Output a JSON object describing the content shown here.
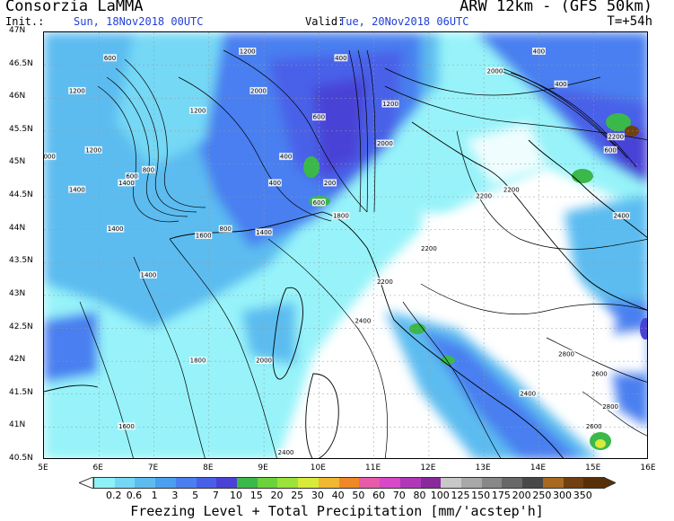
{
  "header": {
    "title_left": "Consorzia LaMMA",
    "title_right": "ARW 12km - (GFS 50km)",
    "init_label": "Init.:",
    "init_value": "Sun, 18Nov2018 00UTC",
    "valid_label": "Valid:",
    "valid_value": "Tue, 20Nov2018 06UTC",
    "step": "T=+54h"
  },
  "axes": {
    "lat_ticks": [
      "47N",
      "46.5N",
      "46N",
      "45.5N",
      "45N",
      "44.5N",
      "44N",
      "43.5N",
      "43N",
      "42.5N",
      "42N",
      "41.5N",
      "41N",
      "40.5N"
    ],
    "lon_ticks": [
      "5E",
      "6E",
      "7E",
      "8E",
      "9E",
      "10E",
      "11E",
      "12E",
      "13E",
      "14E",
      "15E",
      "16E"
    ]
  },
  "contour_labels": [
    {
      "text": "1200",
      "lon": 5.6,
      "lat": 46.1
    },
    {
      "text": "1200",
      "lon": 8.7,
      "lat": 46.7
    },
    {
      "text": "1200",
      "lon": 7.8,
      "lat": 45.8
    },
    {
      "text": "1200",
      "lon": 11.3,
      "lat": 45.9
    },
    {
      "text": "1200",
      "lon": 5.9,
      "lat": 45.2
    },
    {
      "text": "1400",
      "lon": 5.6,
      "lat": 44.6
    },
    {
      "text": "1400",
      "lon": 6.5,
      "lat": 44.7
    },
    {
      "text": "1400",
      "lon": 6.3,
      "lat": 44.0
    },
    {
      "text": "1400",
      "lon": 6.9,
      "lat": 43.3
    },
    {
      "text": "1400",
      "lon": 9.0,
      "lat": 43.95
    },
    {
      "text": "1600",
      "lon": 7.9,
      "lat": 43.9
    },
    {
      "text": "1600",
      "lon": 6.5,
      "lat": 41.0
    },
    {
      "text": "1800",
      "lon": 7.8,
      "lat": 42.0
    },
    {
      "text": "1800",
      "lon": 10.4,
      "lat": 44.2
    },
    {
      "text": "2000",
      "lon": 8.9,
      "lat": 46.1
    },
    {
      "text": "2000",
      "lon": 11.2,
      "lat": 45.3
    },
    {
      "text": "2000",
      "lon": 13.2,
      "lat": 46.4
    },
    {
      "text": "2000",
      "lon": 9.0,
      "lat": 42.0
    },
    {
      "text": "2200",
      "lon": 15.4,
      "lat": 45.4
    },
    {
      "text": "2200",
      "lon": 13.5,
      "lat": 44.6
    },
    {
      "text": "2200",
      "lon": 12.0,
      "lat": 43.7
    },
    {
      "text": "2200",
      "lon": 11.2,
      "lat": 43.2
    },
    {
      "text": "2200",
      "lon": 13.0,
      "lat": 44.5
    },
    {
      "text": "2400",
      "lon": 15.5,
      "lat": 44.2
    },
    {
      "text": "2400",
      "lon": 10.8,
      "lat": 42.6
    },
    {
      "text": "2400",
      "lon": 13.8,
      "lat": 41.5
    },
    {
      "text": "2400",
      "lon": 9.4,
      "lat": 40.6
    },
    {
      "text": "2600",
      "lon": 15.0,
      "lat": 41.0
    },
    {
      "text": "2600",
      "lon": 15.1,
      "lat": 41.8
    },
    {
      "text": "2800",
      "lon": 15.3,
      "lat": 41.3
    },
    {
      "text": "2800",
      "lon": 14.5,
      "lat": 42.1
    },
    {
      "text": "400",
      "lon": 14.0,
      "lat": 46.7
    },
    {
      "text": "400",
      "lon": 14.4,
      "lat": 46.2
    },
    {
      "text": "400",
      "lon": 10.4,
      "lat": 46.6
    },
    {
      "text": "400",
      "lon": 9.4,
      "lat": 45.1
    },
    {
      "text": "400",
      "lon": 9.2,
      "lat": 44.7
    },
    {
      "text": "600",
      "lon": 10.0,
      "lat": 45.7
    },
    {
      "text": "600",
      "lon": 6.2,
      "lat": 46.6
    },
    {
      "text": "600",
      "lon": 10.0,
      "lat": 44.4
    },
    {
      "text": "600",
      "lon": 15.3,
      "lat": 45.2
    },
    {
      "text": "800",
      "lon": 6.9,
      "lat": 44.9
    },
    {
      "text": "800",
      "lon": 8.3,
      "lat": 44.0
    },
    {
      "text": "600",
      "lon": 6.6,
      "lat": 44.8
    },
    {
      "text": "200",
      "lon": 10.2,
      "lat": 44.7
    },
    {
      "text": "000",
      "lon": 5.1,
      "lat": 45.1
    }
  ],
  "legend": {
    "labels": [
      "0.2",
      "0.6",
      "1",
      "3",
      "5",
      "7",
      "10",
      "15",
      "20",
      "25",
      "30",
      "40",
      "50",
      "60",
      "70",
      "80",
      "100",
      "125",
      "150",
      "175",
      "200",
      "250",
      "300",
      "350"
    ],
    "colors": [
      "#8cf2f8",
      "#74d8f5",
      "#5cbcf0",
      "#4aa0ee",
      "#4a7ff0",
      "#4860e8",
      "#4a42d6",
      "#3ab84a",
      "#6bd23a",
      "#9be23a",
      "#d8ea3a",
      "#f0b830",
      "#f08828",
      "#e85aa8",
      "#d848c8",
      "#b038b8",
      "#882a9a",
      "#c8c8c8",
      "#a8a8a8",
      "#888888",
      "#686868",
      "#484848",
      "#a86a20",
      "#704010",
      "#583008"
    ]
  },
  "caption": "Freezing Level + Total Precipitation [mm/'acstep'h]"
}
